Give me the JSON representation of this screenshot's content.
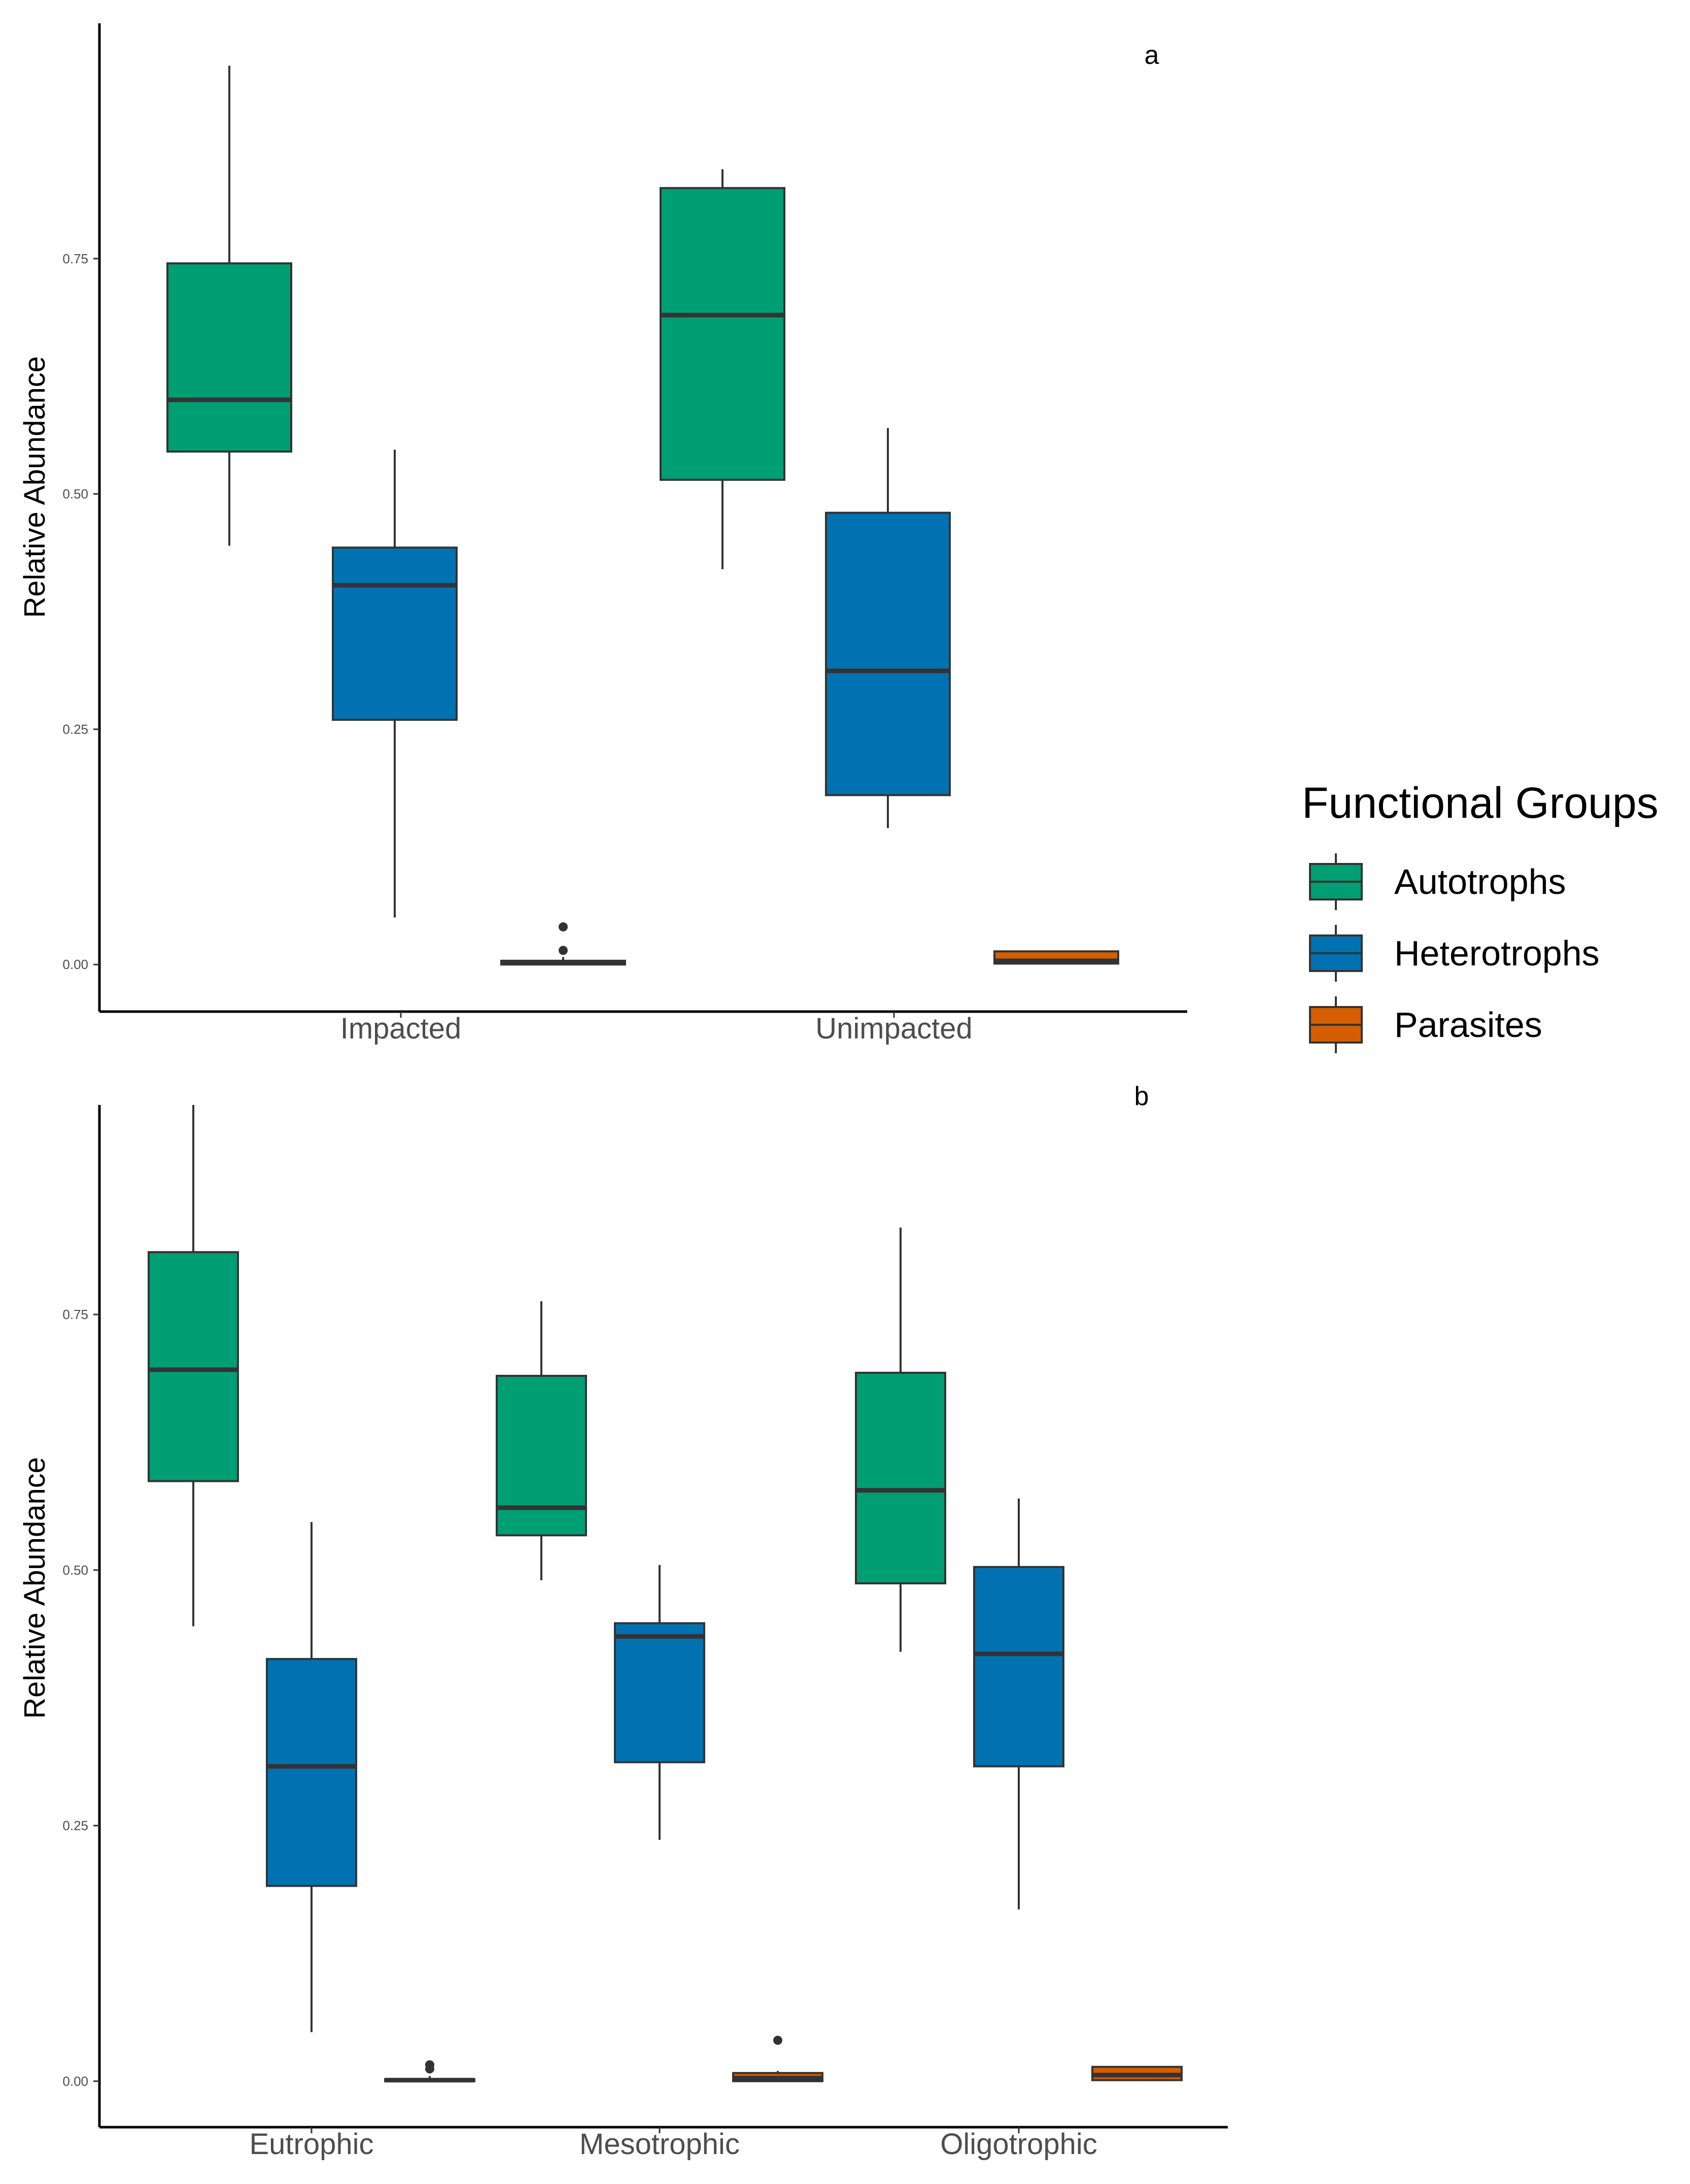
{
  "colors": {
    "Autotrophs": "#009E73",
    "Heterotrophs": "#0072B2",
    "Parasites": "#D55E00",
    "outline": "#333333",
    "axis": "#000000"
  },
  "legend": {
    "title": "Functional Groups",
    "items": [
      "Autotrophs",
      "Heterotrophs",
      "Parasites"
    ],
    "position": "right"
  },
  "chart_data": [
    {
      "type": "boxplot",
      "panel": "a",
      "ylabel": "Relative Abundance",
      "xlabel": "",
      "ylim": [
        -0.05,
        1.0
      ],
      "yticks": [
        0.0,
        0.25,
        0.5,
        0.75
      ],
      "ytick_labels": [
        "0.00",
        "0.25",
        "0.50",
        "0.75"
      ],
      "categories": [
        "Impacted",
        "Unimpacted"
      ],
      "series": [
        {
          "name": "Autotrophs",
          "boxes": [
            {
              "whisker_low": 0.445,
              "q1": 0.545,
              "median": 0.6,
              "q3": 0.745,
              "whisker_high": 0.955,
              "outliers": []
            },
            {
              "whisker_low": 0.42,
              "q1": 0.515,
              "median": 0.69,
              "q3": 0.825,
              "whisker_high": 0.845,
              "outliers": []
            }
          ]
        },
        {
          "name": "Heterotrophs",
          "boxes": [
            {
              "whisker_low": 0.05,
              "q1": 0.26,
              "median": 0.403,
              "q3": 0.443,
              "whisker_high": 0.547,
              "outliers": []
            },
            {
              "whisker_low": 0.145,
              "q1": 0.18,
              "median": 0.312,
              "q3": 0.48,
              "whisker_high": 0.57,
              "outliers": []
            }
          ]
        },
        {
          "name": "Parasites",
          "boxes": [
            {
              "whisker_low": 0.0,
              "q1": 0.0,
              "median": 0.002,
              "q3": 0.004,
              "whisker_high": 0.008,
              "outliers": [
                0.015,
                0.04
              ]
            },
            {
              "whisker_low": 0.0,
              "q1": 0.001,
              "median": 0.004,
              "q3": 0.014,
              "whisker_high": 0.014,
              "outliers": []
            }
          ]
        }
      ]
    },
    {
      "type": "boxplot",
      "panel": "b",
      "ylabel": "Relative Abundance",
      "xlabel": "",
      "ylim": [
        -0.045,
        0.955
      ],
      "yticks": [
        0.0,
        0.25,
        0.5,
        0.75
      ],
      "ytick_labels": [
        "0.00",
        "0.25",
        "0.50",
        "0.75"
      ],
      "categories": [
        "Eutrophic",
        "Mesotrophic",
        "Oligotrophic"
      ],
      "series": [
        {
          "name": "Autotrophs",
          "boxes": [
            {
              "whisker_low": 0.445,
              "q1": 0.587,
              "median": 0.696,
              "q3": 0.811,
              "whisker_high": 0.955,
              "outliers": []
            },
            {
              "whisker_low": 0.49,
              "q1": 0.534,
              "median": 0.561,
              "q3": 0.69,
              "whisker_high": 0.763,
              "outliers": []
            },
            {
              "whisker_low": 0.42,
              "q1": 0.487,
              "median": 0.578,
              "q3": 0.693,
              "whisker_high": 0.835,
              "outliers": []
            }
          ]
        },
        {
          "name": "Heterotrophs",
          "boxes": [
            {
              "whisker_low": 0.048,
              "q1": 0.191,
              "median": 0.308,
              "q3": 0.413,
              "whisker_high": 0.547,
              "outliers": []
            },
            {
              "whisker_low": 0.236,
              "q1": 0.312,
              "median": 0.435,
              "q3": 0.448,
              "whisker_high": 0.505,
              "outliers": []
            },
            {
              "whisker_low": 0.168,
              "q1": 0.308,
              "median": 0.418,
              "q3": 0.503,
              "whisker_high": 0.57,
              "outliers": []
            }
          ]
        },
        {
          "name": "Parasites",
          "boxes": [
            {
              "whisker_low": 0.0,
              "q1": 0.0,
              "median": 0.001,
              "q3": 0.002,
              "whisker_high": 0.005,
              "outliers": [
                0.012,
                0.016
              ]
            },
            {
              "whisker_low": 0.0,
              "q1": 0.0,
              "median": 0.003,
              "q3": 0.008,
              "whisker_high": 0.01,
              "outliers": [
                0.04
              ]
            },
            {
              "whisker_low": 0.0,
              "q1": 0.001,
              "median": 0.006,
              "q3": 0.014,
              "whisker_high": 0.014,
              "outliers": []
            }
          ]
        }
      ]
    }
  ]
}
